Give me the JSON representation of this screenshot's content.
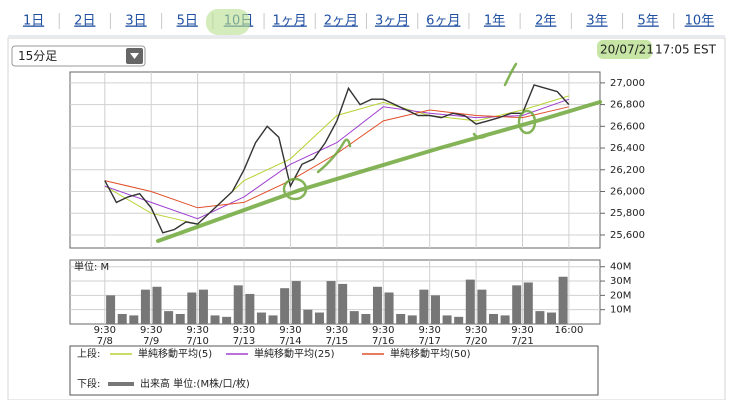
{
  "tabs": [
    "1日",
    "2日",
    "3日",
    "5日",
    "10日",
    "1ヶ月",
    "2ヶ月",
    "3ヶ月",
    "6ヶ月",
    "1年",
    "2年",
    "3年",
    "5年",
    "10年"
  ],
  "selected_tab": "10日",
  "interval_select": "15分足",
  "timestamp": {
    "date": "20/07/21",
    "time": "17:05 EST"
  },
  "legend": {
    "upper_label": "上段:",
    "lower_label": "下段:"
  },
  "chart_data": [
    {
      "type": "line",
      "x": [
        0,
        0.25,
        0.5,
        0.75,
        1,
        1.25,
        1.5,
        1.75,
        2,
        2.25,
        2.5,
        2.75,
        3,
        3.25,
        3.5,
        3.75,
        4,
        4.25,
        4.5,
        4.75,
        5,
        5.25,
        5.5,
        5.75,
        6,
        6.25,
        6.5,
        6.75,
        7,
        7.25,
        7.5,
        7.75,
        8,
        8.25,
        8.5,
        8.75,
        9,
        9.25,
        9.5,
        9.75,
        10
      ],
      "values": [
        26100,
        25900,
        25950,
        25980,
        25850,
        25620,
        25650,
        25720,
        25700,
        25800,
        25900,
        26000,
        26200,
        26450,
        26600,
        26500,
        26050,
        26250,
        26300,
        26450,
        26650,
        26950,
        26800,
        26850,
        26850,
        26800,
        26750,
        26700,
        26700,
        26680,
        26720,
        26700,
        26620,
        26650,
        26680,
        26720,
        26720,
        26980,
        26950,
        26920,
        26800
      ],
      "color": "#333333",
      "series": [
        {
          "name": "単純移動平均(5)",
          "color": "#b5d334",
          "x": [
            0,
            1,
            2,
            3,
            4,
            5,
            6,
            7,
            8,
            9,
            10
          ],
          "values": [
            26050,
            25800,
            25700,
            26100,
            26300,
            26700,
            26820,
            26700,
            26650,
            26750,
            26880
          ]
        },
        {
          "name": "単純移動平均(25)",
          "color": "#a040d0",
          "x": [
            0,
            1,
            2,
            3,
            4,
            5,
            6,
            7,
            8,
            9,
            10
          ],
          "values": [
            26050,
            25900,
            25750,
            25950,
            26250,
            26450,
            26780,
            26720,
            26680,
            26700,
            26850
          ]
        },
        {
          "name": "単純移動平均(50)",
          "color": "#e0502a",
          "x": [
            0,
            1,
            2,
            3,
            4,
            5,
            6,
            7,
            8,
            9,
            10
          ],
          "values": [
            26100,
            26000,
            25850,
            25900,
            26100,
            26350,
            26650,
            26750,
            26700,
            26680,
            26780
          ]
        }
      ],
      "xlim": [
        -0.75,
        10.67
      ],
      "ylim": [
        25480,
        27100
      ],
      "yticks": [
        {
          "value": 25600,
          "label": "25,600"
        },
        {
          "value": 25800,
          "label": "25,800"
        },
        {
          "value": 26000,
          "label": "26,000"
        },
        {
          "value": 26200,
          "label": "26,200"
        },
        {
          "value": 26400,
          "label": "26,400"
        },
        {
          "value": 26600,
          "label": "26,600"
        },
        {
          "value": 26800,
          "label": "26,800"
        },
        {
          "value": 27000,
          "label": "27,000"
        }
      ],
      "grid": true
    },
    {
      "type": "bar",
      "ylabel": "単位: M",
      "series": [
        {
          "name": "出来高 単位:(M株/口/枚)",
          "color": "#777777",
          "x": [
            0.125,
            0.375,
            0.625,
            0.875,
            1.125,
            1.375,
            1.625,
            1.875,
            2.125,
            2.375,
            2.625,
            2.875,
            3.125,
            3.375,
            3.625,
            3.875,
            4.125,
            4.375,
            4.625,
            4.875,
            5.125,
            5.375,
            5.625,
            5.875,
            6.125,
            6.375,
            6.625,
            6.875,
            7.125,
            7.375,
            7.625,
            7.875,
            8.125,
            8.375,
            8.625,
            8.875,
            9.125,
            9.375,
            9.625,
            9.875
          ],
          "values": [
            20,
            7,
            6,
            24,
            26,
            9,
            7,
            22,
            24,
            6,
            5,
            27,
            21,
            8,
            6,
            25,
            30,
            10,
            8,
            30,
            28,
            9,
            7,
            26,
            22,
            7,
            6,
            24,
            20,
            6,
            5,
            31,
            24,
            7,
            6,
            27,
            29,
            9,
            8,
            33
          ]
        }
      ],
      "xlim": [
        -0.75,
        10.67
      ],
      "ylim": [
        0,
        44.7
      ],
      "yticks": [
        {
          "value": 10,
          "label": "10M"
        },
        {
          "value": 20,
          "label": "20M"
        },
        {
          "value": 30,
          "label": "30M"
        },
        {
          "value": 40,
          "label": "40M"
        }
      ],
      "xticks": [
        {
          "value": 0,
          "label": "9:30",
          "date": "7/8"
        },
        {
          "value": 1,
          "label": "9:30",
          "date": "7/9"
        },
        {
          "value": 2,
          "label": "9:30",
          "date": "7/10"
        },
        {
          "value": 3,
          "label": "9:30",
          "date": "7/13"
        },
        {
          "value": 4,
          "label": "9:30",
          "date": "7/14"
        },
        {
          "value": 5,
          "label": "9:30",
          "date": "7/15"
        },
        {
          "value": 6,
          "label": "9:30",
          "date": "7/16"
        },
        {
          "value": 7,
          "label": "9:30",
          "date": "7/17"
        },
        {
          "value": 8,
          "label": "9:30",
          "date": "7/20"
        },
        {
          "value": 9,
          "label": "9:30",
          "date": "7/21"
        },
        {
          "value": 10,
          "label": "16:00"
        }
      ],
      "grid": true
    }
  ]
}
